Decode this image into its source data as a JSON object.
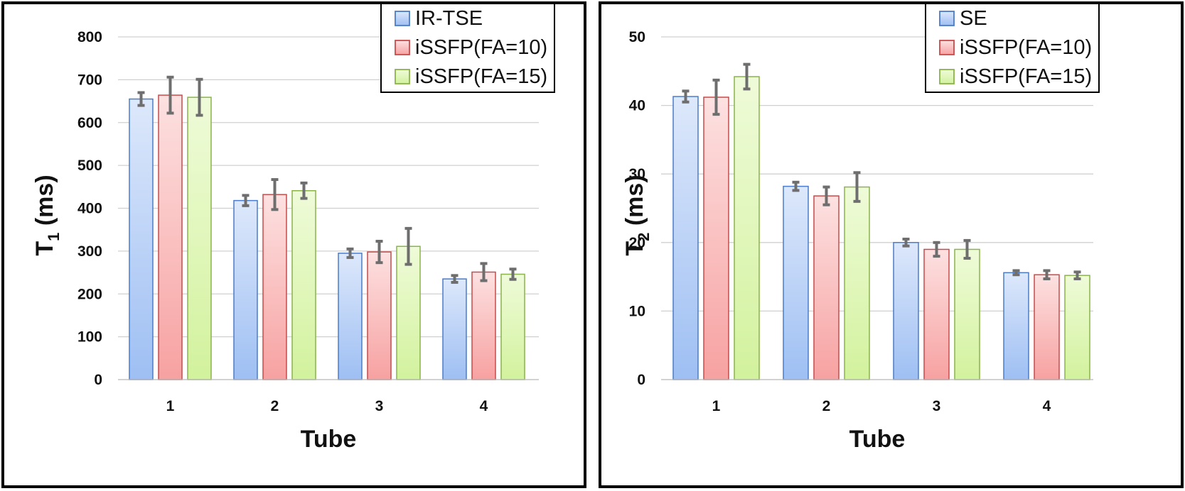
{
  "colors": {
    "series_fill_light": [
      "#dde8fb",
      "#fde1e1",
      "#effbd9"
    ],
    "series_fill_dark": [
      "#9ebff3",
      "#f7a1a1",
      "#d2f29d"
    ],
    "series_stroke": [
      "#4a7cc9",
      "#c94a4a",
      "#8ab34a"
    ],
    "error_bar": "#6e6e6e",
    "grid": "#d0d0d0"
  },
  "chart_data": [
    {
      "type": "bar",
      "title": "",
      "xlabel": "Tube",
      "ylabel_main": "T",
      "ylabel_sub": "1",
      "ylabel_rest": " (ms)",
      "categories": [
        "1",
        "2",
        "3",
        "4"
      ],
      "ylim": [
        0,
        800
      ],
      "yticks": [
        "0",
        "100",
        "200",
        "300",
        "400",
        "500",
        "600",
        "700",
        "800"
      ],
      "grid": true,
      "legend_position": "top-right",
      "series": [
        {
          "name": "IR-TSE",
          "values": [
            655,
            418,
            295,
            235
          ],
          "errors": [
            15,
            12,
            10,
            8
          ]
        },
        {
          "name": "iSSFP(FA=10)",
          "values": [
            664,
            432,
            298,
            251
          ],
          "errors": [
            42,
            35,
            25,
            20
          ]
        },
        {
          "name": "iSSFP(FA=15)",
          "values": [
            659,
            441,
            311,
            246
          ],
          "errors": [
            42,
            18,
            42,
            12
          ]
        }
      ]
    },
    {
      "type": "bar",
      "title": "",
      "xlabel": "Tube",
      "ylabel_main": "T",
      "ylabel_sub": "2",
      "ylabel_rest": " (ms)",
      "categories": [
        "1",
        "2",
        "3",
        "4"
      ],
      "ylim": [
        0,
        50
      ],
      "yticks": [
        "0",
        "10",
        "20",
        "30",
        "40",
        "50"
      ],
      "grid": true,
      "legend_position": "top-right",
      "series": [
        {
          "name": "SE",
          "values": [
            41.3,
            28.2,
            20.0,
            15.6
          ],
          "errors": [
            0.8,
            0.6,
            0.5,
            0.3
          ]
        },
        {
          "name": "iSSFP(FA=10)",
          "values": [
            41.2,
            26.8,
            19.0,
            15.3
          ],
          "errors": [
            2.5,
            1.3,
            1.0,
            0.6
          ]
        },
        {
          "name": "iSSFP(FA=15)",
          "values": [
            44.2,
            28.1,
            19.0,
            15.2
          ],
          "errors": [
            1.8,
            2.1,
            1.3,
            0.5
          ]
        }
      ]
    }
  ]
}
